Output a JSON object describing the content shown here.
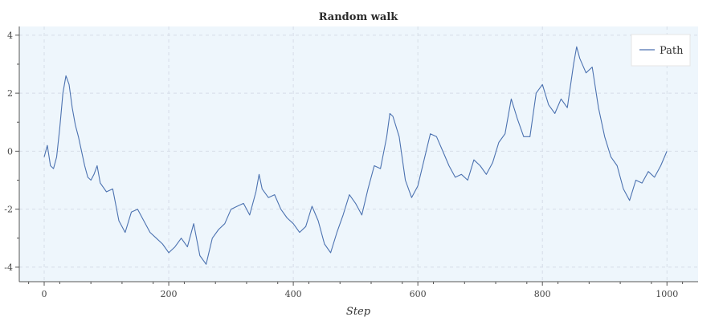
{
  "chart_data": {
    "type": "line",
    "title": "Random walk",
    "xlabel": "Step",
    "ylabel": "",
    "xlim": [
      -40,
      1050
    ],
    "ylim": [
      -4.5,
      4.3
    ],
    "xticks": [
      0,
      200,
      400,
      600,
      800,
      1000
    ],
    "yticks": [
      -4,
      -2,
      0,
      2,
      4
    ],
    "grid": true,
    "legend": "top-right",
    "background_color": "#eef6fc",
    "series": [
      {
        "name": "Path",
        "color": "#4c72b0",
        "points": [
          [
            0,
            -0.2
          ],
          [
            5,
            0.2
          ],
          [
            10,
            -0.5
          ],
          [
            15,
            -0.6
          ],
          [
            20,
            -0.2
          ],
          [
            25,
            0.8
          ],
          [
            30,
            2.0
          ],
          [
            35,
            2.6
          ],
          [
            40,
            2.3
          ],
          [
            45,
            1.5
          ],
          [
            50,
            0.9
          ],
          [
            55,
            0.5
          ],
          [
            60,
            0.0
          ],
          [
            65,
            -0.5
          ],
          [
            70,
            -0.9
          ],
          [
            75,
            -1.0
          ],
          [
            80,
            -0.8
          ],
          [
            85,
            -0.5
          ],
          [
            90,
            -1.1
          ],
          [
            100,
            -1.4
          ],
          [
            110,
            -1.3
          ],
          [
            120,
            -2.4
          ],
          [
            130,
            -2.8
          ],
          [
            140,
            -2.1
          ],
          [
            150,
            -2.0
          ],
          [
            160,
            -2.4
          ],
          [
            170,
            -2.8
          ],
          [
            180,
            -3.0
          ],
          [
            190,
            -3.2
          ],
          [
            200,
            -3.5
          ],
          [
            210,
            -3.3
          ],
          [
            220,
            -3.0
          ],
          [
            230,
            -3.3
          ],
          [
            240,
            -2.5
          ],
          [
            250,
            -3.6
          ],
          [
            260,
            -3.9
          ],
          [
            270,
            -3.0
          ],
          [
            280,
            -2.7
          ],
          [
            290,
            -2.5
          ],
          [
            300,
            -2.0
          ],
          [
            310,
            -1.9
          ],
          [
            320,
            -1.8
          ],
          [
            330,
            -2.2
          ],
          [
            340,
            -1.4
          ],
          [
            345,
            -0.8
          ],
          [
            350,
            -1.3
          ],
          [
            360,
            -1.6
          ],
          [
            370,
            -1.5
          ],
          [
            380,
            -2.0
          ],
          [
            390,
            -2.3
          ],
          [
            400,
            -2.5
          ],
          [
            410,
            -2.8
          ],
          [
            420,
            -2.6
          ],
          [
            430,
            -1.9
          ],
          [
            440,
            -2.4
          ],
          [
            450,
            -3.2
          ],
          [
            460,
            -3.5
          ],
          [
            470,
            -2.8
          ],
          [
            480,
            -2.2
          ],
          [
            490,
            -1.5
          ],
          [
            500,
            -1.8
          ],
          [
            510,
            -2.2
          ],
          [
            520,
            -1.3
          ],
          [
            530,
            -0.5
          ],
          [
            540,
            -0.6
          ],
          [
            550,
            0.5
          ],
          [
            555,
            1.3
          ],
          [
            560,
            1.2
          ],
          [
            570,
            0.5
          ],
          [
            580,
            -1.0
          ],
          [
            590,
            -1.6
          ],
          [
            600,
            -1.2
          ],
          [
            610,
            -0.3
          ],
          [
            620,
            0.6
          ],
          [
            630,
            0.5
          ],
          [
            640,
            0.0
          ],
          [
            650,
            -0.5
          ],
          [
            660,
            -0.9
          ],
          [
            670,
            -0.8
          ],
          [
            680,
            -1.0
          ],
          [
            690,
            -0.3
          ],
          [
            700,
            -0.5
          ],
          [
            710,
            -0.8
          ],
          [
            720,
            -0.4
          ],
          [
            730,
            0.3
          ],
          [
            740,
            0.6
          ],
          [
            750,
            1.8
          ],
          [
            760,
            1.1
          ],
          [
            770,
            0.5
          ],
          [
            780,
            0.5
          ],
          [
            790,
            2.0
          ],
          [
            800,
            2.3
          ],
          [
            810,
            1.6
          ],
          [
            820,
            1.3
          ],
          [
            830,
            1.8
          ],
          [
            840,
            1.5
          ],
          [
            850,
            3.0
          ],
          [
            855,
            3.6
          ],
          [
            860,
            3.2
          ],
          [
            870,
            2.7
          ],
          [
            880,
            2.9
          ],
          [
            890,
            1.5
          ],
          [
            900,
            0.5
          ],
          [
            910,
            -0.2
          ],
          [
            920,
            -0.5
          ],
          [
            930,
            -1.3
          ],
          [
            940,
            -1.7
          ],
          [
            950,
            -1.0
          ],
          [
            960,
            -1.1
          ],
          [
            970,
            -0.7
          ],
          [
            980,
            -0.9
          ],
          [
            990,
            -0.5
          ],
          [
            1000,
            0.0
          ]
        ]
      }
    ]
  }
}
